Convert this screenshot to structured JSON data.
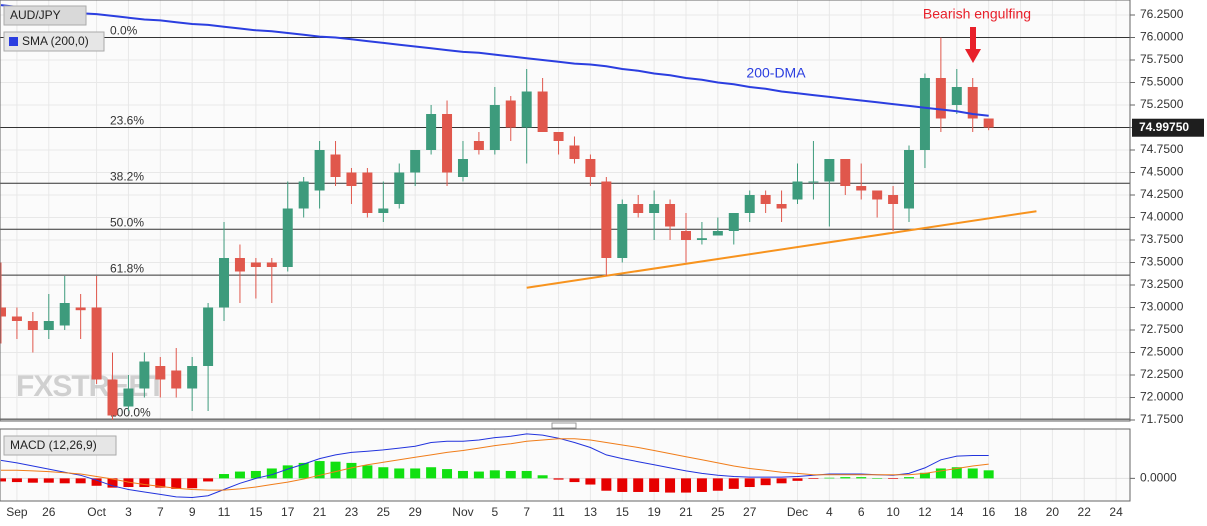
{
  "watermark": "FXSTREET",
  "chart_data": [
    {
      "type": "candlestick",
      "title": "AUD/JPY",
      "categories": [
        null,
        "Sep",
        null,
        "26",
        null,
        null,
        "Oct",
        null,
        "3",
        null,
        "7",
        null,
        "9",
        null,
        "11",
        null,
        "15",
        null,
        "17",
        null,
        "21",
        null,
        "23",
        null,
        "25",
        null,
        "29",
        null,
        null,
        "Nov",
        null,
        "5",
        null,
        "7",
        null,
        "11",
        null,
        "13",
        null,
        "15",
        null,
        "19",
        null,
        "21",
        null,
        "25",
        null,
        "27",
        null,
        null,
        "Dec",
        null,
        "4",
        null,
        "6",
        null,
        "10",
        null,
        "12",
        null,
        "14",
        null,
        "16",
        null,
        "18",
        null,
        "20",
        null,
        "22",
        null,
        "24"
      ],
      "open": [
        73.0,
        72.9,
        72.85,
        72.75,
        72.8,
        73.0,
        73.0,
        72.2,
        71.9,
        72.1,
        72.35,
        72.3,
        72.1,
        72.35,
        73.0,
        73.55,
        73.5,
        73.5,
        73.45,
        74.1,
        74.3,
        74.7,
        74.5,
        74.5,
        74.05,
        74.15,
        74.5,
        74.75,
        75.15,
        74.45,
        74.85,
        74.75,
        75.3,
        75.0,
        75.4,
        74.95,
        74.8,
        74.65,
        74.4,
        73.55,
        74.15,
        74.05,
        74.15,
        73.85,
        73.75,
        73.8,
        73.85,
        74.05,
        74.25,
        74.15,
        74.2,
        74.4,
        74.4,
        74.65,
        74.35,
        74.3,
        74.25,
        74.1,
        74.75,
        75.55,
        75.25,
        75.45,
        75.1,
        null,
        null,
        null,
        null,
        null,
        null,
        null,
        null
      ],
      "high": [
        73.5,
        73.0,
        72.95,
        73.15,
        73.35,
        73.15,
        73.35,
        72.5,
        72.25,
        72.5,
        72.45,
        72.55,
        72.45,
        73.05,
        73.95,
        73.7,
        73.55,
        73.55,
        74.4,
        74.45,
        74.85,
        74.85,
        74.55,
        74.55,
        74.4,
        74.6,
        74.75,
        75.25,
        75.3,
        74.85,
        74.95,
        75.45,
        75.35,
        75.65,
        75.55,
        74.95,
        74.9,
        74.7,
        74.45,
        74.2,
        74.25,
        74.3,
        74.2,
        74.05,
        73.95,
        74.0,
        74.05,
        74.3,
        74.3,
        74.3,
        74.6,
        74.85,
        74.65,
        74.65,
        74.6,
        74.3,
        74.35,
        74.8,
        75.6,
        76.0,
        75.65,
        75.55,
        75.1,
        null,
        null,
        null,
        null,
        null,
        null,
        null,
        null
      ],
      "low": [
        72.6,
        72.65,
        72.5,
        72.65,
        72.75,
        72.65,
        72.15,
        71.75,
        71.85,
        72.0,
        72.0,
        72.0,
        71.85,
        71.85,
        72.85,
        73.05,
        73.1,
        73.05,
        73.4,
        74.0,
        74.1,
        74.35,
        74.15,
        74.0,
        73.95,
        74.1,
        74.35,
        74.7,
        74.35,
        74.4,
        74.7,
        74.7,
        74.85,
        74.6,
        74.95,
        74.7,
        74.6,
        74.35,
        73.35,
        73.5,
        74.0,
        73.75,
        73.75,
        73.5,
        73.7,
        73.8,
        73.7,
        73.95,
        74.05,
        73.95,
        74.15,
        74.2,
        73.9,
        74.25,
        74.2,
        74.0,
        73.85,
        73.95,
        74.55,
        74.95,
        75.15,
        74.95,
        74.97,
        null,
        null,
        null,
        null,
        null,
        null,
        null,
        null
      ],
      "close": [
        72.9,
        72.85,
        72.75,
        72.85,
        73.05,
        72.97,
        72.2,
        71.8,
        72.1,
        72.4,
        72.2,
        72.1,
        72.35,
        73.0,
        73.55,
        73.4,
        73.45,
        73.45,
        74.1,
        74.4,
        74.75,
        74.45,
        74.35,
        74.05,
        74.1,
        74.5,
        74.75,
        75.15,
        74.5,
        74.65,
        74.75,
        75.25,
        75.0,
        75.4,
        74.95,
        74.85,
        74.65,
        74.45,
        73.55,
        74.15,
        74.05,
        74.15,
        73.9,
        73.75,
        73.77,
        73.85,
        74.05,
        74.25,
        74.15,
        74.1,
        74.4,
        74.4,
        74.65,
        74.35,
        74.3,
        74.2,
        74.15,
        74.75,
        75.55,
        75.1,
        75.45,
        75.1,
        75.0,
        null,
        null,
        null,
        null,
        null,
        null,
        null,
        null
      ],
      "up_color": "#3d9b7c",
      "down_color": "#e0574c",
      "series": [
        {
          "name": "SMA (200,0)",
          "color": "#2b3ee0",
          "values": [
            76.36,
            76.34,
            76.33,
            76.31,
            76.29,
            76.27,
            76.26,
            76.24,
            76.22,
            76.2,
            76.19,
            76.17,
            76.15,
            76.14,
            76.12,
            76.1,
            76.08,
            76.07,
            76.05,
            76.03,
            76.01,
            76.0,
            75.98,
            75.96,
            75.94,
            75.92,
            75.9,
            75.88,
            75.86,
            75.84,
            75.83,
            75.81,
            75.79,
            75.77,
            75.75,
            75.73,
            75.71,
            75.7,
            75.68,
            75.65,
            75.63,
            75.6,
            75.58,
            75.55,
            75.53,
            75.5,
            75.48,
            75.45,
            75.43,
            75.4,
            75.38,
            75.36,
            75.34,
            75.32,
            75.3,
            75.28,
            75.26,
            75.24,
            75.22,
            75.2,
            75.18,
            75.15,
            75.13,
            null,
            null,
            null,
            null,
            null,
            null,
            null,
            null
          ]
        }
      ],
      "levels": [
        {
          "label": "0.0%",
          "value": 76.0
        },
        {
          "label": "23.6%",
          "value": 75.0
        },
        {
          "label": "38.2%",
          "value": 74.38
        },
        {
          "label": "50.0%",
          "value": 73.87
        },
        {
          "label": "61.8%",
          "value": 73.36
        },
        {
          "label": "100.0%",
          "value": 71.76
        }
      ],
      "trendline": {
        "color": "#f7931e",
        "x": [
          33,
          65
        ],
        "y": [
          73.22,
          74.07
        ]
      },
      "last_price": {
        "value": 74.9975,
        "label": "74.99750"
      },
      "annotations": [
        {
          "text": "Bearish engulfing",
          "color": "#e8202a"
        },
        {
          "text": "200-DMA",
          "color": "#2b3ee0"
        }
      ],
      "ylim": [
        71.75,
        76.25
      ],
      "yticks": [
        {
          "value": 71.75,
          "label": "71.7500"
        },
        {
          "value": 72.0,
          "label": "72.0000"
        },
        {
          "value": 72.25,
          "label": "72.2500"
        },
        {
          "value": 72.5,
          "label": "72.5000"
        },
        {
          "value": 72.75,
          "label": "72.7500"
        },
        {
          "value": 73.0,
          "label": "73.0000"
        },
        {
          "value": 73.25,
          "label": "73.2500"
        },
        {
          "value": 73.5,
          "label": "73.5000"
        },
        {
          "value": 73.75,
          "label": "73.7500"
        },
        {
          "value": 74.0,
          "label": "74.0000"
        },
        {
          "value": 74.25,
          "label": "74.2500"
        },
        {
          "value": 74.5,
          "label": "74.5000"
        },
        {
          "value": 74.75,
          "label": "74.7500"
        },
        {
          "value": 75.0,
          "label": "75.0000"
        },
        {
          "value": 75.25,
          "label": "75.2500"
        },
        {
          "value": 75.5,
          "label": "75.5000"
        },
        {
          "value": 75.75,
          "label": "75.7500"
        },
        {
          "value": 76.0,
          "label": "76.0000"
        },
        {
          "value": 76.25,
          "label": "76.2500"
        }
      ],
      "grid": true
    },
    {
      "type": "macd",
      "title": "MACD (12,26,9)",
      "histogram": {
        "up_color": "#11e011",
        "down_color": "#e60000",
        "values": [
          -0.05,
          -0.06,
          -0.07,
          -0.07,
          -0.08,
          -0.08,
          -0.12,
          -0.15,
          -0.14,
          -0.14,
          -0.15,
          -0.17,
          -0.16,
          -0.05,
          0.07,
          0.11,
          0.12,
          0.16,
          0.21,
          0.25,
          0.28,
          0.27,
          0.25,
          0.21,
          0.18,
          0.16,
          0.16,
          0.18,
          0.15,
          0.12,
          0.11,
          0.13,
          0.12,
          0.12,
          0.05,
          -0.02,
          -0.06,
          -0.1,
          -0.2,
          -0.22,
          -0.22,
          -0.22,
          -0.23,
          -0.23,
          -0.22,
          -0.2,
          -0.17,
          -0.14,
          -0.11,
          -0.08,
          -0.04,
          -0.01,
          0.01,
          0.02,
          0.02,
          0.0,
          -0.01,
          0.02,
          0.09,
          0.16,
          0.18,
          0.16,
          0.13,
          null,
          null,
          null,
          null,
          null,
          null,
          null,
          null
        ]
      },
      "series": [
        {
          "color": "#2233dd",
          "values": [
            0.29,
            0.25,
            0.2,
            0.15,
            0.1,
            0.05,
            -0.03,
            -0.12,
            -0.18,
            -0.22,
            -0.26,
            -0.3,
            -0.31,
            -0.28,
            -0.18,
            -0.08,
            0.0,
            0.06,
            0.15,
            0.23,
            0.32,
            0.38,
            0.42,
            0.44,
            0.46,
            0.49,
            0.52,
            0.58,
            0.6,
            0.6,
            0.62,
            0.66,
            0.68,
            0.72,
            0.7,
            0.65,
            0.58,
            0.5,
            0.38,
            0.32,
            0.27,
            0.22,
            0.17,
            0.12,
            0.08,
            0.05,
            0.03,
            0.02,
            0.02,
            0.02,
            0.03,
            0.05,
            0.07,
            0.07,
            0.07,
            0.06,
            0.05,
            0.08,
            0.17,
            0.3,
            0.36,
            0.37,
            0.37,
            null,
            null,
            null,
            null,
            null,
            null,
            null,
            null
          ]
        },
        {
          "color": "#f07d1a",
          "values": [
            0.13,
            0.13,
            0.12,
            0.11,
            0.09,
            0.07,
            0.03,
            -0.01,
            -0.06,
            -0.1,
            -0.13,
            -0.16,
            -0.18,
            -0.19,
            -0.19,
            -0.17,
            -0.14,
            -0.1,
            -0.06,
            -0.01,
            0.05,
            0.11,
            0.17,
            0.22,
            0.26,
            0.3,
            0.34,
            0.38,
            0.42,
            0.45,
            0.49,
            0.53,
            0.56,
            0.6,
            0.62,
            0.64,
            0.64,
            0.62,
            0.58,
            0.54,
            0.5,
            0.45,
            0.4,
            0.35,
            0.3,
            0.25,
            0.2,
            0.16,
            0.13,
            0.1,
            0.08,
            0.06,
            0.06,
            0.06,
            0.06,
            0.06,
            0.06,
            0.06,
            0.08,
            0.12,
            0.16,
            0.2,
            0.23,
            null,
            null,
            null,
            null,
            null,
            null,
            null,
            null
          ]
        }
      ],
      "ylim": [
        -0.35,
        0.75
      ],
      "yticks": [
        {
          "value": 0,
          "label": "0.0000"
        }
      ]
    }
  ]
}
